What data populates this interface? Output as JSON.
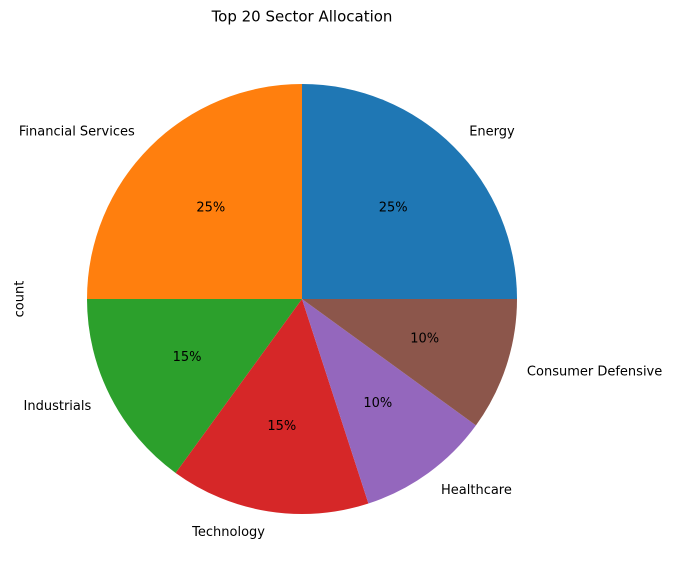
{
  "chart_data": {
    "type": "pie",
    "title": "Top 20 Sector Allocation",
    "ylabel": "count",
    "categories": [
      "Energy",
      "Financial Services",
      "Industrials",
      "Technology",
      "Healthcare",
      "Consumer Defensive"
    ],
    "values": [
      25,
      25,
      15,
      15,
      10,
      10
    ],
    "value_labels": [
      "25%",
      "25%",
      "15%",
      "15%",
      "10%",
      "10%"
    ],
    "colors": [
      "#1f77b4",
      "#ff7f0e",
      "#2ca02c",
      "#d62728",
      "#9467bd",
      "#8c564b"
    ]
  }
}
